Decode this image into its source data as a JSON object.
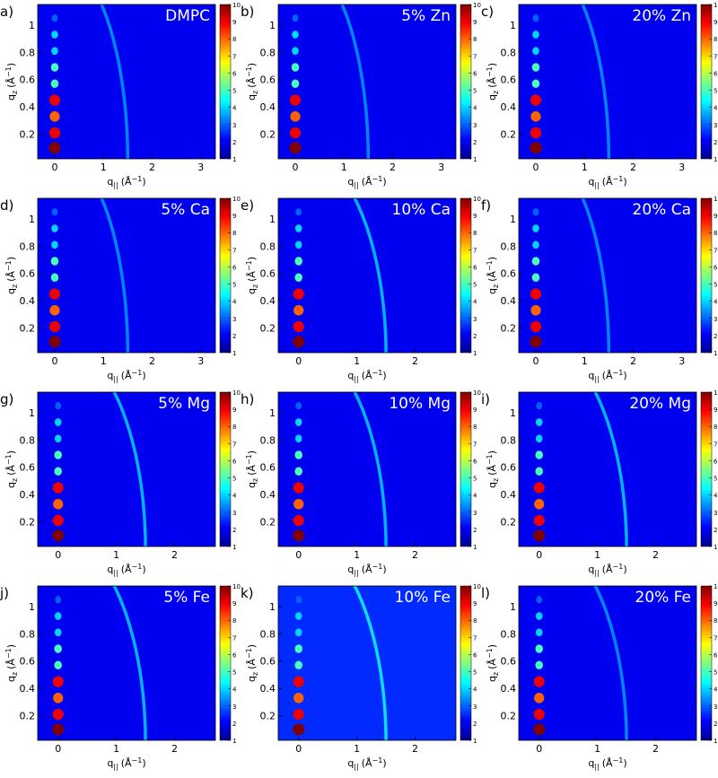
{
  "chart_data": [
    {
      "type": "heatmap",
      "label": "a)",
      "title": "DMPC",
      "xlim": [
        -0.35,
        3.3
      ],
      "xticks": [
        0,
        1,
        2,
        3
      ],
      "ylim": [
        0.02,
        1.15
      ],
      "yticks": [
        0.2,
        0.4,
        0.6,
        0.8,
        1
      ],
      "clim": [
        1,
        10
      ],
      "cticks": [
        1,
        2,
        3,
        4,
        5,
        6,
        7,
        8,
        9,
        10
      ],
      "background": 2,
      "bragg_qz": [
        0.1,
        0.21,
        0.33,
        0.45,
        0.57,
        0.69,
        0.81,
        0.93,
        1.05
      ],
      "bragg_intensity": [
        10,
        9,
        8,
        9,
        5,
        5,
        4,
        4,
        3
      ],
      "arc_q": 1.5,
      "arc_intensity": 3.5,
      "xlabel": [
        "q",
        "||",
        "(Å",
        "−1",
        ")"
      ],
      "ylabel": [
        "q",
        "z",
        "(Å",
        "−1",
        ")"
      ]
    },
    {
      "type": "heatmap",
      "label": "b)",
      "title": "5% Zn",
      "xlim": [
        -0.35,
        3.3
      ],
      "xticks": [
        0,
        1,
        2,
        3
      ],
      "ylim": [
        0.02,
        1.15
      ],
      "yticks": [
        0.2,
        0.4,
        0.6,
        0.8,
        1
      ],
      "clim": [
        1,
        10
      ],
      "cticks": [
        1,
        2,
        3,
        4,
        5,
        6,
        7,
        8,
        9,
        10
      ],
      "background": 2,
      "bragg_qz": [
        0.1,
        0.21,
        0.33,
        0.45,
        0.57,
        0.69,
        0.81,
        0.93,
        1.05
      ],
      "bragg_intensity": [
        10,
        9,
        8,
        9,
        5,
        5,
        4,
        4,
        3
      ],
      "arc_q": 1.5,
      "arc_intensity": 3.5,
      "xlabel": [
        "q",
        "||",
        "(Å",
        "−1",
        ")"
      ],
      "ylabel": [
        "q",
        "z",
        "(Å",
        "−1",
        ")"
      ]
    },
    {
      "type": "heatmap",
      "label": "c)",
      "title": "20% Zn",
      "xlim": [
        -0.35,
        3.3
      ],
      "xticks": [
        0,
        1,
        2,
        3
      ],
      "ylim": [
        0.02,
        1.15
      ],
      "yticks": [
        0.2,
        0.4,
        0.6,
        0.8,
        1
      ],
      "clim": [
        1,
        10
      ],
      "cticks": [
        1,
        2,
        3,
        4,
        5,
        6,
        7,
        8,
        9,
        10
      ],
      "background": 2,
      "bragg_qz": [
        0.1,
        0.21,
        0.33,
        0.45,
        0.57,
        0.69,
        0.81,
        0.93,
        1.05
      ],
      "bragg_intensity": [
        10,
        9,
        8,
        9,
        5,
        5,
        4,
        4,
        3
      ],
      "arc_q": 1.5,
      "arc_intensity": 3.5,
      "xlabel": [
        "q",
        "||",
        "(Å",
        "−1",
        ")"
      ],
      "ylabel": [
        "q",
        "z",
        "(Å",
        "−1",
        ")"
      ]
    },
    {
      "type": "heatmap",
      "label": "d)",
      "title": "5% Ca",
      "xlim": [
        -0.35,
        3.3
      ],
      "xticks": [
        0,
        1,
        2,
        3
      ],
      "ylim": [
        0.02,
        1.15
      ],
      "yticks": [
        0.2,
        0.4,
        0.6,
        0.8,
        1
      ],
      "clim": [
        1,
        10
      ],
      "cticks": [
        1,
        2,
        3,
        4,
        5,
        6,
        7,
        8,
        9,
        10
      ],
      "background": 2,
      "bragg_qz": [
        0.1,
        0.21,
        0.33,
        0.45,
        0.57,
        0.69,
        0.81,
        0.93,
        1.05
      ],
      "bragg_intensity": [
        10,
        9,
        8,
        9,
        5,
        5,
        4,
        4,
        3
      ],
      "arc_q": 1.5,
      "arc_intensity": 3.5,
      "xlabel": [
        "q",
        "||",
        "(Å",
        "−1",
        ")"
      ],
      "ylabel": [
        "q",
        "z",
        "(Å",
        "−1",
        ")"
      ]
    },
    {
      "type": "heatmap",
      "label": "e)",
      "title": "10% Ca",
      "xlim": [
        -0.35,
        2.7
      ],
      "xticks": [
        0,
        1,
        2
      ],
      "ylim": [
        0.02,
        1.15
      ],
      "yticks": [
        0.2,
        0.4,
        0.6,
        0.8,
        1
      ],
      "clim": [
        1,
        10
      ],
      "cticks": [
        1,
        2,
        3,
        4,
        5,
        6,
        7,
        8,
        9,
        10
      ],
      "background": 2,
      "bragg_qz": [
        0.1,
        0.21,
        0.33,
        0.45,
        0.57,
        0.69,
        0.81,
        0.93,
        1.05
      ],
      "bragg_intensity": [
        10,
        9,
        8,
        9,
        5,
        5,
        4,
        4,
        3
      ],
      "arc_q": 1.5,
      "arc_intensity": 4,
      "xlabel": [
        "q",
        "||",
        "(Å",
        "−1",
        ")"
      ],
      "ylabel": [
        "q",
        "z",
        "(Å",
        "−1",
        ")"
      ]
    },
    {
      "type": "heatmap",
      "label": "f)",
      "title": "20% Ca",
      "xlim": [
        -0.35,
        3.3
      ],
      "xticks": [
        0,
        1,
        2,
        3
      ],
      "ylim": [
        0.02,
        1.15
      ],
      "yticks": [
        0.2,
        0.4,
        0.6,
        0.8,
        1
      ],
      "clim": [
        1,
        10
      ],
      "cticks": [
        1,
        2,
        3,
        4,
        5,
        6,
        7,
        8,
        9,
        10
      ],
      "background": 2,
      "bragg_qz": [
        0.1,
        0.21,
        0.33,
        0.45,
        0.57,
        0.69,
        0.81,
        0.93,
        1.05
      ],
      "bragg_intensity": [
        10,
        9,
        8,
        9,
        5,
        5,
        4,
        4,
        3
      ],
      "arc_q": 1.5,
      "arc_intensity": 3.5,
      "xlabel": [
        "q",
        "||",
        "(Å",
        "−1",
        ")"
      ],
      "ylabel": [
        "q",
        "z",
        "(Å",
        "−1",
        ")"
      ]
    },
    {
      "type": "heatmap",
      "label": "g)",
      "title": "5% Mg",
      "xlim": [
        -0.35,
        2.7
      ],
      "xticks": [
        0,
        1,
        2
      ],
      "ylim": [
        0.02,
        1.15
      ],
      "yticks": [
        0.2,
        0.4,
        0.6,
        0.8,
        1
      ],
      "clim": [
        1,
        10
      ],
      "cticks": [
        1,
        2,
        3,
        4,
        5,
        6,
        7,
        8,
        9,
        10
      ],
      "background": 2,
      "bragg_qz": [
        0.1,
        0.21,
        0.33,
        0.45,
        0.57,
        0.69,
        0.81,
        0.93,
        1.05
      ],
      "bragg_intensity": [
        10,
        9,
        8,
        9,
        5,
        5,
        4,
        4,
        3
      ],
      "arc_q": 1.5,
      "arc_intensity": 4,
      "xlabel": [
        "q",
        "||",
        "(Å",
        "−1",
        ")"
      ],
      "ylabel": [
        "q",
        "z",
        "(Å",
        "−1",
        ")"
      ]
    },
    {
      "type": "heatmap",
      "label": "h)",
      "title": "10% Mg",
      "xlim": [
        -0.35,
        2.7
      ],
      "xticks": [
        0,
        1,
        2
      ],
      "ylim": [
        0.02,
        1.15
      ],
      "yticks": [
        0.2,
        0.4,
        0.6,
        0.8,
        1
      ],
      "clim": [
        1,
        10
      ],
      "cticks": [
        1,
        2,
        3,
        4,
        5,
        6,
        7,
        8,
        9,
        10
      ],
      "background": 2,
      "bragg_qz": [
        0.1,
        0.21,
        0.33,
        0.45,
        0.57,
        0.69,
        0.81,
        0.93,
        1.05
      ],
      "bragg_intensity": [
        10,
        9,
        8,
        9,
        5,
        5,
        4,
        4,
        3
      ],
      "arc_q": 1.5,
      "arc_intensity": 4,
      "xlabel": [
        "q",
        "||",
        "(Å",
        "−1",
        ")"
      ],
      "ylabel": [
        "q",
        "z",
        "(Å",
        "−1",
        ")"
      ]
    },
    {
      "type": "heatmap",
      "label": "i)",
      "title": "20% Mg",
      "xlim": [
        -0.35,
        2.7
      ],
      "xticks": [
        0,
        1,
        2
      ],
      "ylim": [
        0.02,
        1.15
      ],
      "yticks": [
        0.2,
        0.4,
        0.6,
        0.8,
        1
      ],
      "clim": [
        1,
        10
      ],
      "cticks": [
        1,
        2,
        3,
        4,
        5,
        6,
        7,
        8,
        9,
        10
      ],
      "background": 2,
      "bragg_qz": [
        0.1,
        0.21,
        0.33,
        0.45,
        0.57,
        0.69,
        0.81,
        0.93,
        1.05
      ],
      "bragg_intensity": [
        10,
        9,
        8,
        9,
        5,
        5,
        4,
        4,
        3
      ],
      "arc_q": 1.5,
      "arc_intensity": 4,
      "xlabel": [
        "q",
        "||",
        "(Å",
        "−1",
        ")"
      ],
      "ylabel": [
        "q",
        "z",
        "(Å",
        "−1",
        ")"
      ]
    },
    {
      "type": "heatmap",
      "label": "j)",
      "title": "5% Fe",
      "xlim": [
        -0.35,
        2.7
      ],
      "xticks": [
        0,
        1,
        2
      ],
      "ylim": [
        0.02,
        1.15
      ],
      "yticks": [
        0.2,
        0.4,
        0.6,
        0.8,
        1
      ],
      "clim": [
        1,
        10
      ],
      "cticks": [
        1,
        2,
        3,
        4,
        5,
        6,
        7,
        8,
        9,
        10
      ],
      "background": 2,
      "bragg_qz": [
        0.1,
        0.21,
        0.33,
        0.45,
        0.57,
        0.69,
        0.81,
        0.93,
        1.05
      ],
      "bragg_intensity": [
        10,
        9,
        8,
        9,
        5,
        5,
        4,
        4,
        3
      ],
      "arc_q": 1.5,
      "arc_intensity": 4,
      "xlabel": [
        "q",
        "||",
        "(Å",
        "−1",
        ")"
      ],
      "ylabel": [
        "q",
        "z",
        "(Å",
        "−1",
        ")"
      ]
    },
    {
      "type": "heatmap",
      "label": "k)",
      "title": "10% Fe",
      "xlim": [
        -0.35,
        2.7
      ],
      "xticks": [
        0,
        1,
        2
      ],
      "ylim": [
        0.02,
        1.15
      ],
      "yticks": [
        0.2,
        0.4,
        0.6,
        0.8,
        1
      ],
      "clim": [
        1,
        10
      ],
      "cticks": [
        1,
        2,
        3,
        4,
        5,
        6,
        7,
        8,
        9,
        10
      ],
      "background": 2.5,
      "bragg_qz": [
        0.1,
        0.21,
        0.33,
        0.45,
        0.57,
        0.69,
        0.81,
        0.93,
        1.05
      ],
      "bragg_intensity": [
        10,
        9,
        8,
        9,
        5,
        5,
        4,
        4,
        3
      ],
      "arc_q": 1.5,
      "arc_intensity": 4.5,
      "xlabel": [
        "q",
        "||",
        "(Å",
        "−1",
        ")"
      ],
      "ylabel": [
        "q",
        "z",
        "(Å",
        "−1",
        ")"
      ]
    },
    {
      "type": "heatmap",
      "label": "l)",
      "title": "20% Fe",
      "xlim": [
        -0.35,
        2.7
      ],
      "xticks": [
        0,
        1,
        2
      ],
      "ylim": [
        0.02,
        1.15
      ],
      "yticks": [
        0.2,
        0.4,
        0.6,
        0.8,
        1
      ],
      "clim": [
        1,
        10
      ],
      "cticks": [
        1,
        2,
        3,
        4,
        5,
        6,
        7,
        8,
        9,
        10
      ],
      "background": 2,
      "bragg_qz": [
        0.1,
        0.21,
        0.33,
        0.45,
        0.57,
        0.69,
        0.81,
        0.93,
        1.05
      ],
      "bragg_intensity": [
        10,
        9,
        8,
        9,
        5,
        5,
        4,
        4,
        3
      ],
      "arc_q": 1.5,
      "arc_intensity": 3.5,
      "xlabel": [
        "q",
        "||",
        "(Å",
        "−1",
        ")"
      ],
      "ylabel": [
        "q",
        "z",
        "(Å",
        "−1",
        ")"
      ]
    }
  ]
}
